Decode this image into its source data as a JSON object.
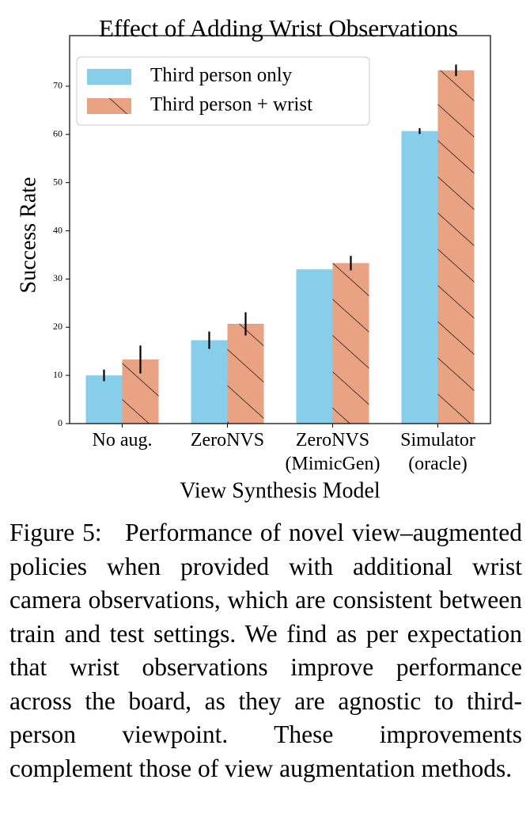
{
  "chart_data": {
    "type": "bar",
    "title": "Effect of Adding Wrist Observations",
    "x_label": "View Synthesis Model",
    "y_label": "Success Rate",
    "categories": [
      "No aug.",
      "ZeroNVS",
      "ZeroNVS\n(MimicGen)",
      "Simulator\n(oracle)"
    ],
    "series": [
      {
        "name": "Third person only",
        "color": "#87ceeb",
        "hatch": false,
        "values": [
          10,
          17.3,
          32,
          60.7
        ],
        "errors": [
          1.2,
          1.8,
          0,
          0.6
        ]
      },
      {
        "name": "Third person + wrist",
        "color": "#e9a282",
        "hatch": true,
        "values": [
          13.3,
          20.7,
          33.3,
          73.3
        ],
        "errors": [
          2.9,
          2.4,
          1.5,
          1.2
        ]
      }
    ],
    "ylim": [
      0,
      80.5
    ],
    "yticks": [
      0,
      10,
      20,
      30,
      40,
      50,
      60,
      70
    ],
    "legend": "upper left"
  },
  "caption": {
    "label": "Figure 5:",
    "text": "Performance of novel view–augmented policies when provided with additional wrist camera observations, which are consistent between train and test settings. We find as per expectation that wrist observations improve performance across the board, as they are agnostic to third-person viewpoint. These improvements complement those of view augmentation methods."
  }
}
